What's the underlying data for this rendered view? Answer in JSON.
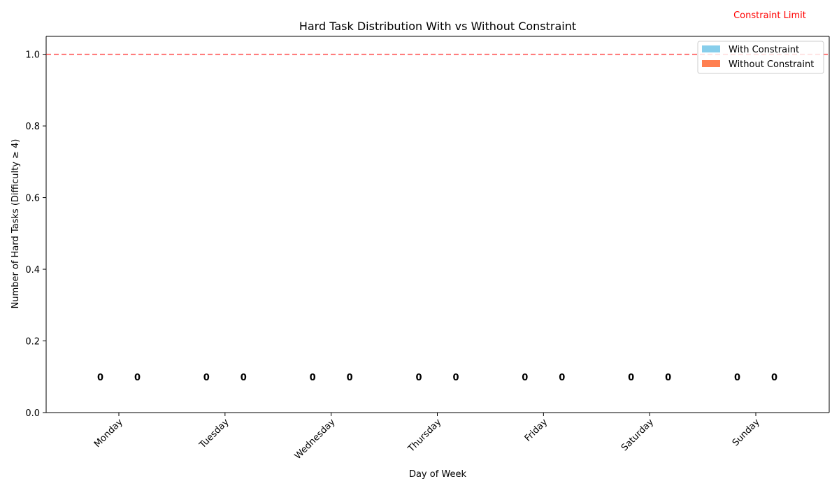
{
  "chart_data": {
    "type": "bar",
    "title": "Hard Task Distribution With vs Without Constraint",
    "xlabel": "Day of Week",
    "ylabel": "Number of Hard Tasks (Difficulty ≥ 4)",
    "categories": [
      "Monday",
      "Tuesday",
      "Wednesday",
      "Thursday",
      "Friday",
      "Saturday",
      "Sunday"
    ],
    "series": [
      {
        "name": "With Constraint",
        "values": [
          0,
          0,
          0,
          0,
          0,
          0,
          0
        ],
        "color": "#87ceeb"
      },
      {
        "name": "Without Constraint",
        "values": [
          0,
          0,
          0,
          0,
          0,
          0,
          0
        ],
        "color": "#ff7f50"
      }
    ],
    "ylim": [
      0,
      1.05
    ],
    "yticks": [
      "0.0",
      "0.2",
      "0.4",
      "0.6",
      "0.8",
      "1.0"
    ],
    "reference_line": {
      "value": 1.0,
      "label": "Constraint Limit",
      "color": "#ff0000",
      "style": "dashed"
    },
    "legend_position": "top-right",
    "grid": false
  }
}
